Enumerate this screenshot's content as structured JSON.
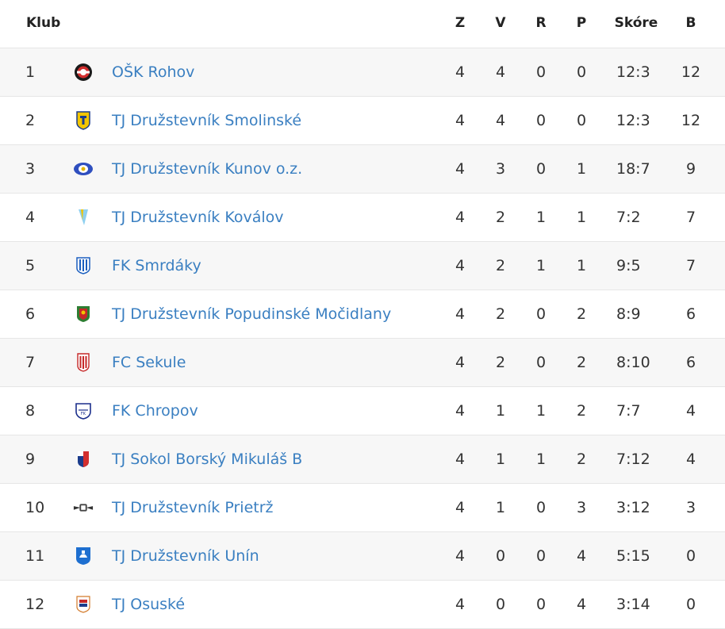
{
  "table": {
    "headers": {
      "club": "Klub",
      "z": "Z",
      "v": "V",
      "r": "R",
      "p": "P",
      "score": "Skóre",
      "b": "B"
    },
    "rows": [
      {
        "pos": "1",
        "club": "OŠK Rohov",
        "logo": "rohov-crest-icon",
        "z": "4",
        "v": "4",
        "r": "0",
        "p": "0",
        "score": "12:3",
        "b": "12"
      },
      {
        "pos": "2",
        "club": "TJ Družstevník Smolinské",
        "logo": "smolinske-crest-icon",
        "z": "4",
        "v": "4",
        "r": "0",
        "p": "0",
        "score": "12:3",
        "b": "12"
      },
      {
        "pos": "3",
        "club": "TJ Družstevník Kunov o.z.",
        "logo": "kunov-crest-icon",
        "z": "4",
        "v": "3",
        "r": "0",
        "p": "1",
        "score": "18:7",
        "b": "9"
      },
      {
        "pos": "4",
        "club": "TJ Družstevník Koválov",
        "logo": "kovalov-crest-icon",
        "z": "4",
        "v": "2",
        "r": "1",
        "p": "1",
        "score": "7:2",
        "b": "7"
      },
      {
        "pos": "5",
        "club": "FK Smrdáky",
        "logo": "smrdaky-crest-icon",
        "z": "4",
        "v": "2",
        "r": "1",
        "p": "1",
        "score": "9:5",
        "b": "7"
      },
      {
        "pos": "6",
        "club": "TJ Družstevník Popudinské Močidlany",
        "logo": "popudinske-crest-icon",
        "z": "4",
        "v": "2",
        "r": "0",
        "p": "2",
        "score": "8:9",
        "b": "6"
      },
      {
        "pos": "7",
        "club": "FC Sekule",
        "logo": "sekule-crest-icon",
        "z": "4",
        "v": "2",
        "r": "0",
        "p": "2",
        "score": "8:10",
        "b": "6"
      },
      {
        "pos": "8",
        "club": "FK Chropov",
        "logo": "chropov-crest-icon",
        "z": "4",
        "v": "1",
        "r": "1",
        "p": "2",
        "score": "7:7",
        "b": "4"
      },
      {
        "pos": "9",
        "club": "TJ Sokol Borský Mikuláš B",
        "logo": "borsky-mikulas-crest-icon",
        "z": "4",
        "v": "1",
        "r": "1",
        "p": "2",
        "score": "7:12",
        "b": "4"
      },
      {
        "pos": "10",
        "club": "TJ Družstevník Prietrž",
        "logo": "prietrz-crest-icon",
        "z": "4",
        "v": "1",
        "r": "0",
        "p": "3",
        "score": "3:12",
        "b": "3"
      },
      {
        "pos": "11",
        "club": "TJ Družstevník Unín",
        "logo": "unin-crest-icon",
        "z": "4",
        "v": "0",
        "r": "0",
        "p": "4",
        "score": "5:15",
        "b": "0"
      },
      {
        "pos": "12",
        "club": "TJ Osuské",
        "logo": "osuske-crest-icon",
        "z": "4",
        "v": "0",
        "r": "0",
        "p": "4",
        "score": "3:14",
        "b": "0"
      }
    ]
  },
  "colors": {
    "link": "#3a7fc1",
    "row_stripe": "#f7f7f7",
    "divider": "#e6e6e6"
  }
}
